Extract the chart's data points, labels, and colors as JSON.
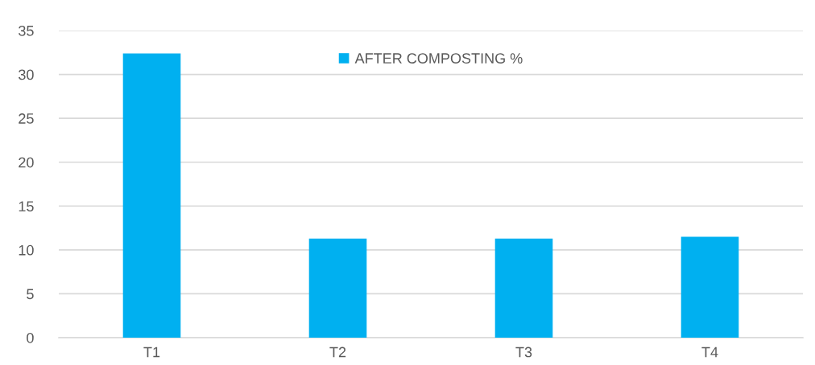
{
  "chart_data": {
    "type": "bar",
    "categories": [
      "T1",
      "T2",
      "T3",
      "T4"
    ],
    "series": [
      {
        "name": "AFTER COMPOSTING %",
        "color": "#00b0f0",
        "values": [
          32.4,
          11.3,
          11.3,
          11.5
        ]
      }
    ],
    "ylim": [
      0,
      35
    ],
    "yticks": [
      0,
      5,
      10,
      15,
      20,
      25,
      30,
      35
    ],
    "grid": "y",
    "legend": "top"
  }
}
